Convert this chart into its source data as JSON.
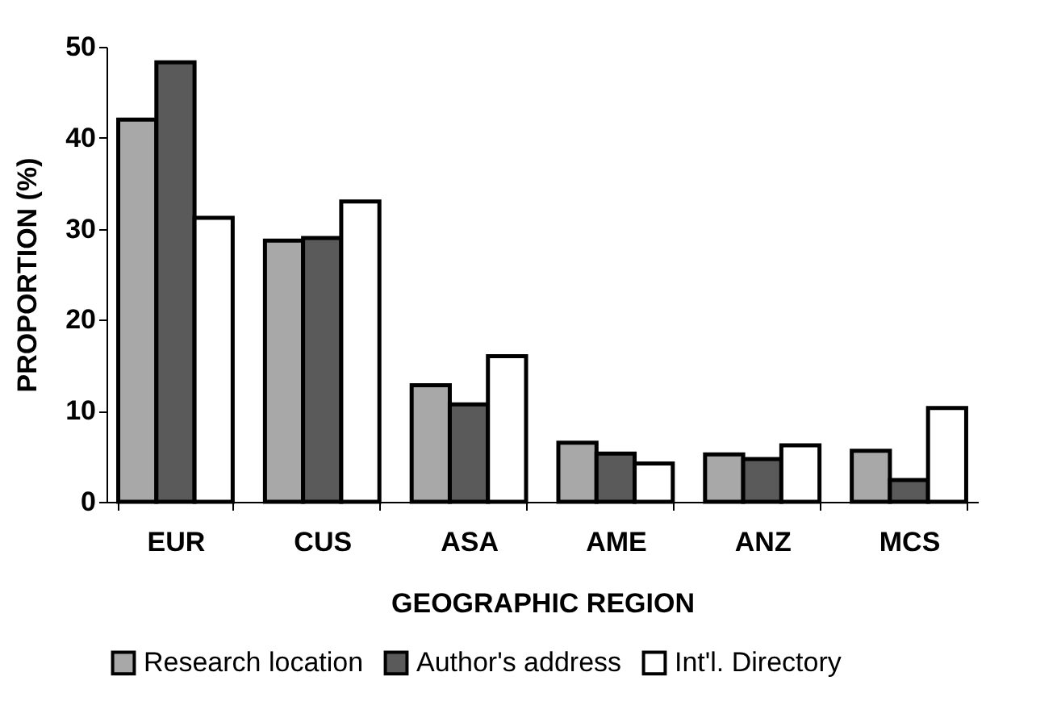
{
  "chart_data": {
    "type": "bar",
    "xlabel": "GEOGRAPHIC REGION",
    "ylabel": "PROPORTION (%)",
    "categories": [
      "EUR",
      "CUS",
      "ASA",
      "AME",
      "ANZ",
      "MCS"
    ],
    "series": [
      {
        "name": "Research location",
        "color": "#a8a8a8",
        "values": [
          42,
          28.7,
          12.8,
          6.5,
          5.2,
          5.6
        ]
      },
      {
        "name": "Author's address",
        "color": "#5a5a5a",
        "values": [
          48.3,
          29,
          10.7,
          5.3,
          4.7,
          2.4
        ]
      },
      {
        "name": "Int'l. Directory",
        "color": "#ffffff",
        "values": [
          31.2,
          33,
          16,
          4.2,
          6.2,
          10.3
        ]
      }
    ],
    "ylim": [
      0,
      50
    ],
    "yticks": [
      0,
      10,
      20,
      30,
      40,
      50
    ],
    "grid": false,
    "legend": "bottom"
  }
}
